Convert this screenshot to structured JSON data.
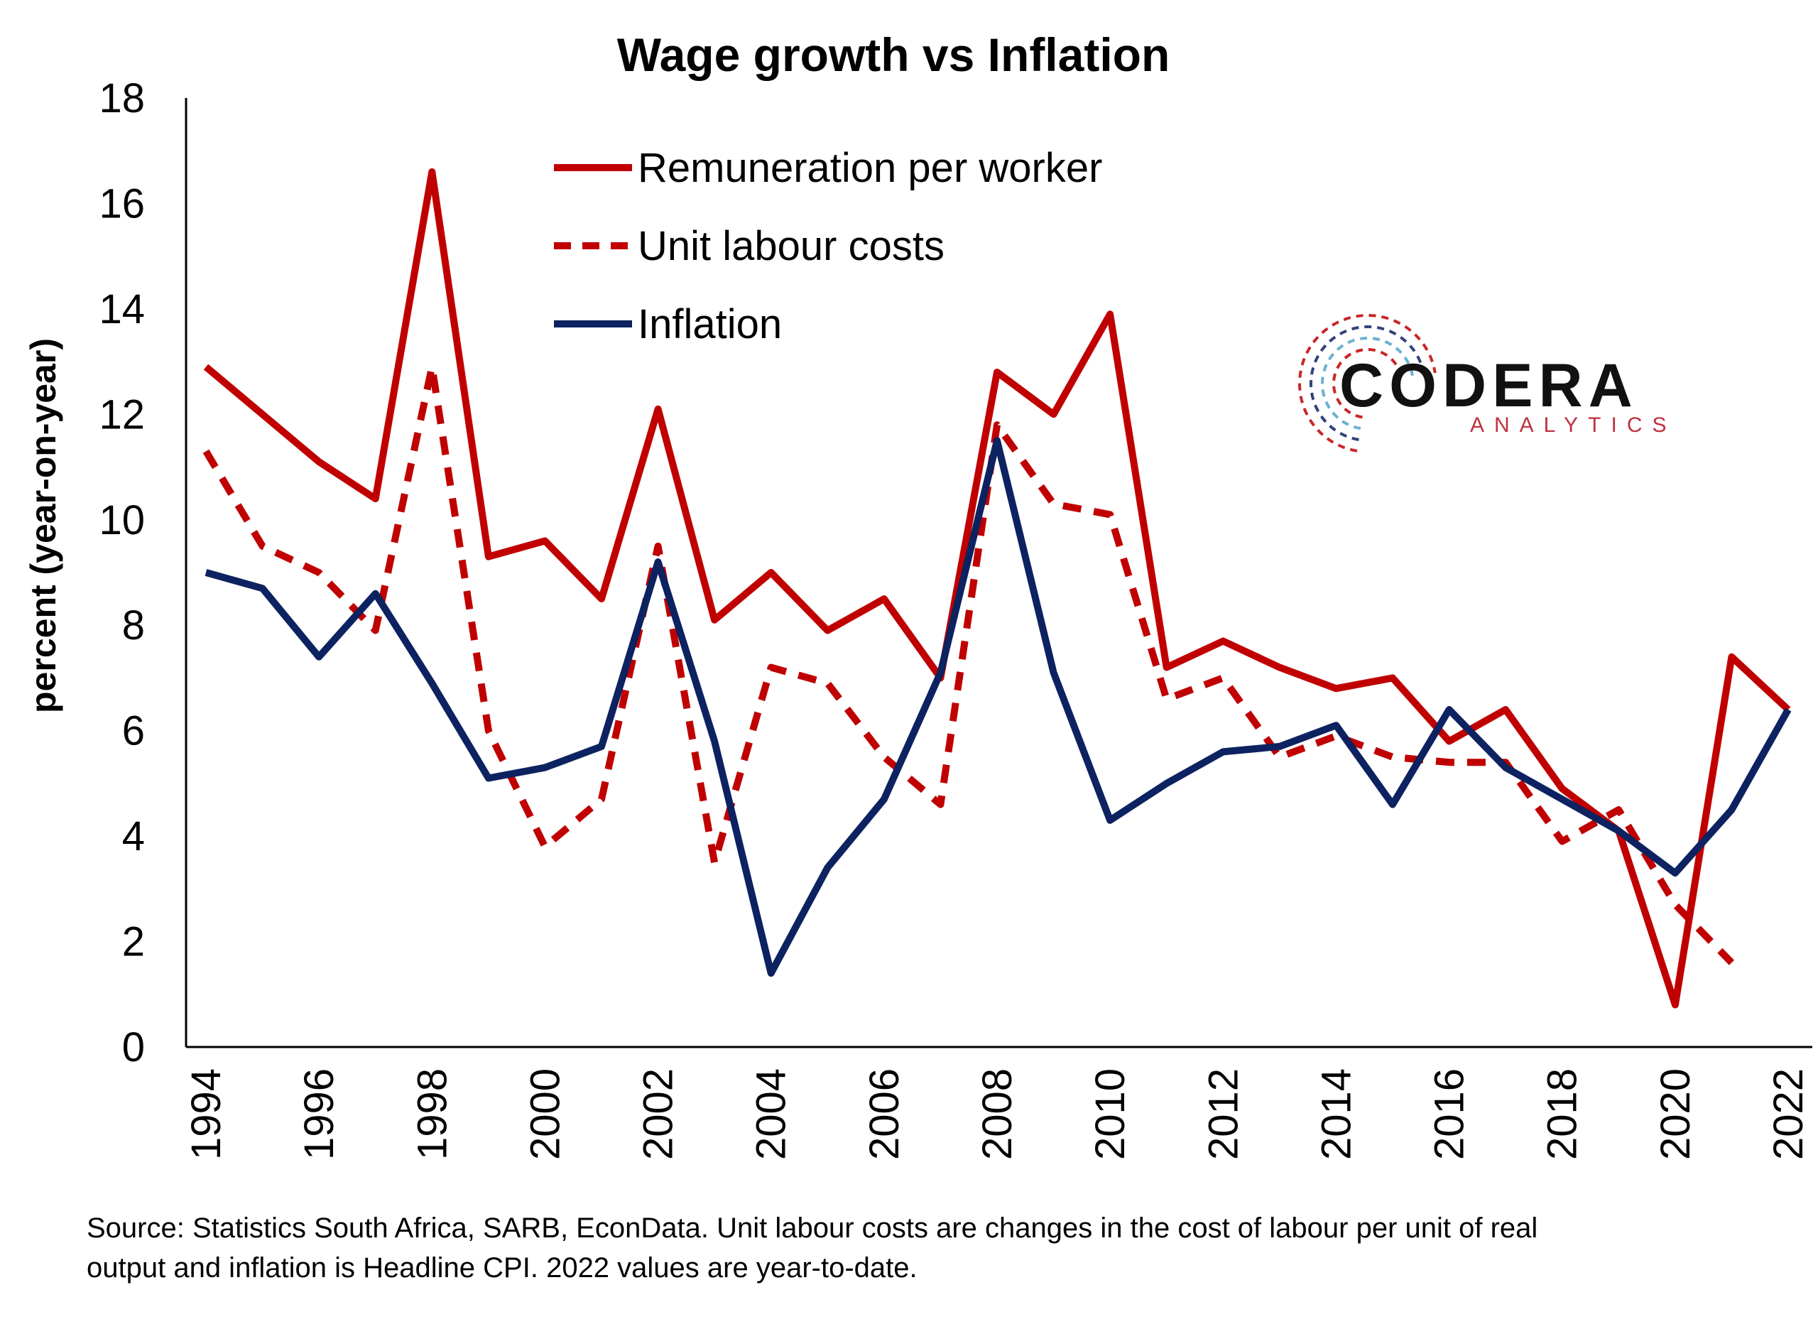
{
  "chart_data": {
    "type": "line",
    "title": "Wage growth vs Inflation",
    "ylabel": "percent (year-on-year)",
    "xlabel": "",
    "ylim": [
      0,
      18
    ],
    "yticks": [
      0,
      2,
      4,
      6,
      8,
      10,
      12,
      14,
      16,
      18
    ],
    "xticks": [
      1994,
      1996,
      1998,
      2000,
      2002,
      2004,
      2006,
      2008,
      2010,
      2012,
      2014,
      2016,
      2018,
      2020,
      2022
    ],
    "x": [
      1994,
      1995,
      1996,
      1997,
      1998,
      1999,
      2000,
      2001,
      2002,
      2003,
      2004,
      2005,
      2006,
      2007,
      2008,
      2009,
      2010,
      2011,
      2012,
      2013,
      2014,
      2015,
      2016,
      2017,
      2018,
      2019,
      2020,
      2021,
      2022
    ],
    "grid": false,
    "legend_position": "top-center",
    "series": [
      {
        "name": "Remuneration per worker",
        "color": "#C00000",
        "style": "solid",
        "values": [
          12.9,
          12.0,
          11.1,
          10.4,
          16.6,
          9.3,
          9.6,
          8.5,
          12.1,
          8.1,
          9.0,
          7.9,
          8.5,
          7.0,
          12.8,
          12.0,
          13.9,
          7.2,
          7.7,
          7.2,
          6.8,
          7.0,
          5.8,
          6.4,
          4.9,
          4.1,
          0.8,
          7.4,
          6.4
        ]
      },
      {
        "name": "Unit labour costs",
        "color": "#C00000",
        "style": "dashed",
        "values": [
          11.3,
          9.5,
          9.0,
          7.9,
          12.9,
          6.0,
          3.8,
          4.7,
          9.5,
          3.5,
          7.2,
          6.9,
          5.5,
          4.6,
          11.8,
          10.3,
          10.1,
          6.6,
          7.0,
          5.5,
          5.9,
          5.5,
          5.4,
          5.4,
          3.9,
          4.5,
          2.7,
          1.6,
          null
        ]
      },
      {
        "name": "Inflation",
        "color": "#0D2260",
        "style": "solid",
        "values": [
          9.0,
          8.7,
          7.4,
          8.6,
          6.9,
          5.1,
          5.3,
          5.7,
          9.2,
          5.8,
          1.4,
          3.4,
          4.7,
          7.1,
          11.5,
          7.1,
          4.3,
          5.0,
          5.6,
          5.7,
          6.1,
          4.6,
          6.4,
          5.3,
          4.7,
          4.1,
          3.3,
          4.5,
          6.4
        ]
      }
    ],
    "logo": {
      "name": "CODERA",
      "subtitle": "ANALYTICS",
      "colors": [
        "#C00000",
        "#0D2260",
        "#4FA3C9"
      ]
    },
    "source_note": [
      "Source: Statistics South Africa, SARB, EconData. Unit labour costs are changes in the cost of labour per unit of real",
      "output and inflation is Headline CPI. 2022 values are year-to-date."
    ]
  }
}
